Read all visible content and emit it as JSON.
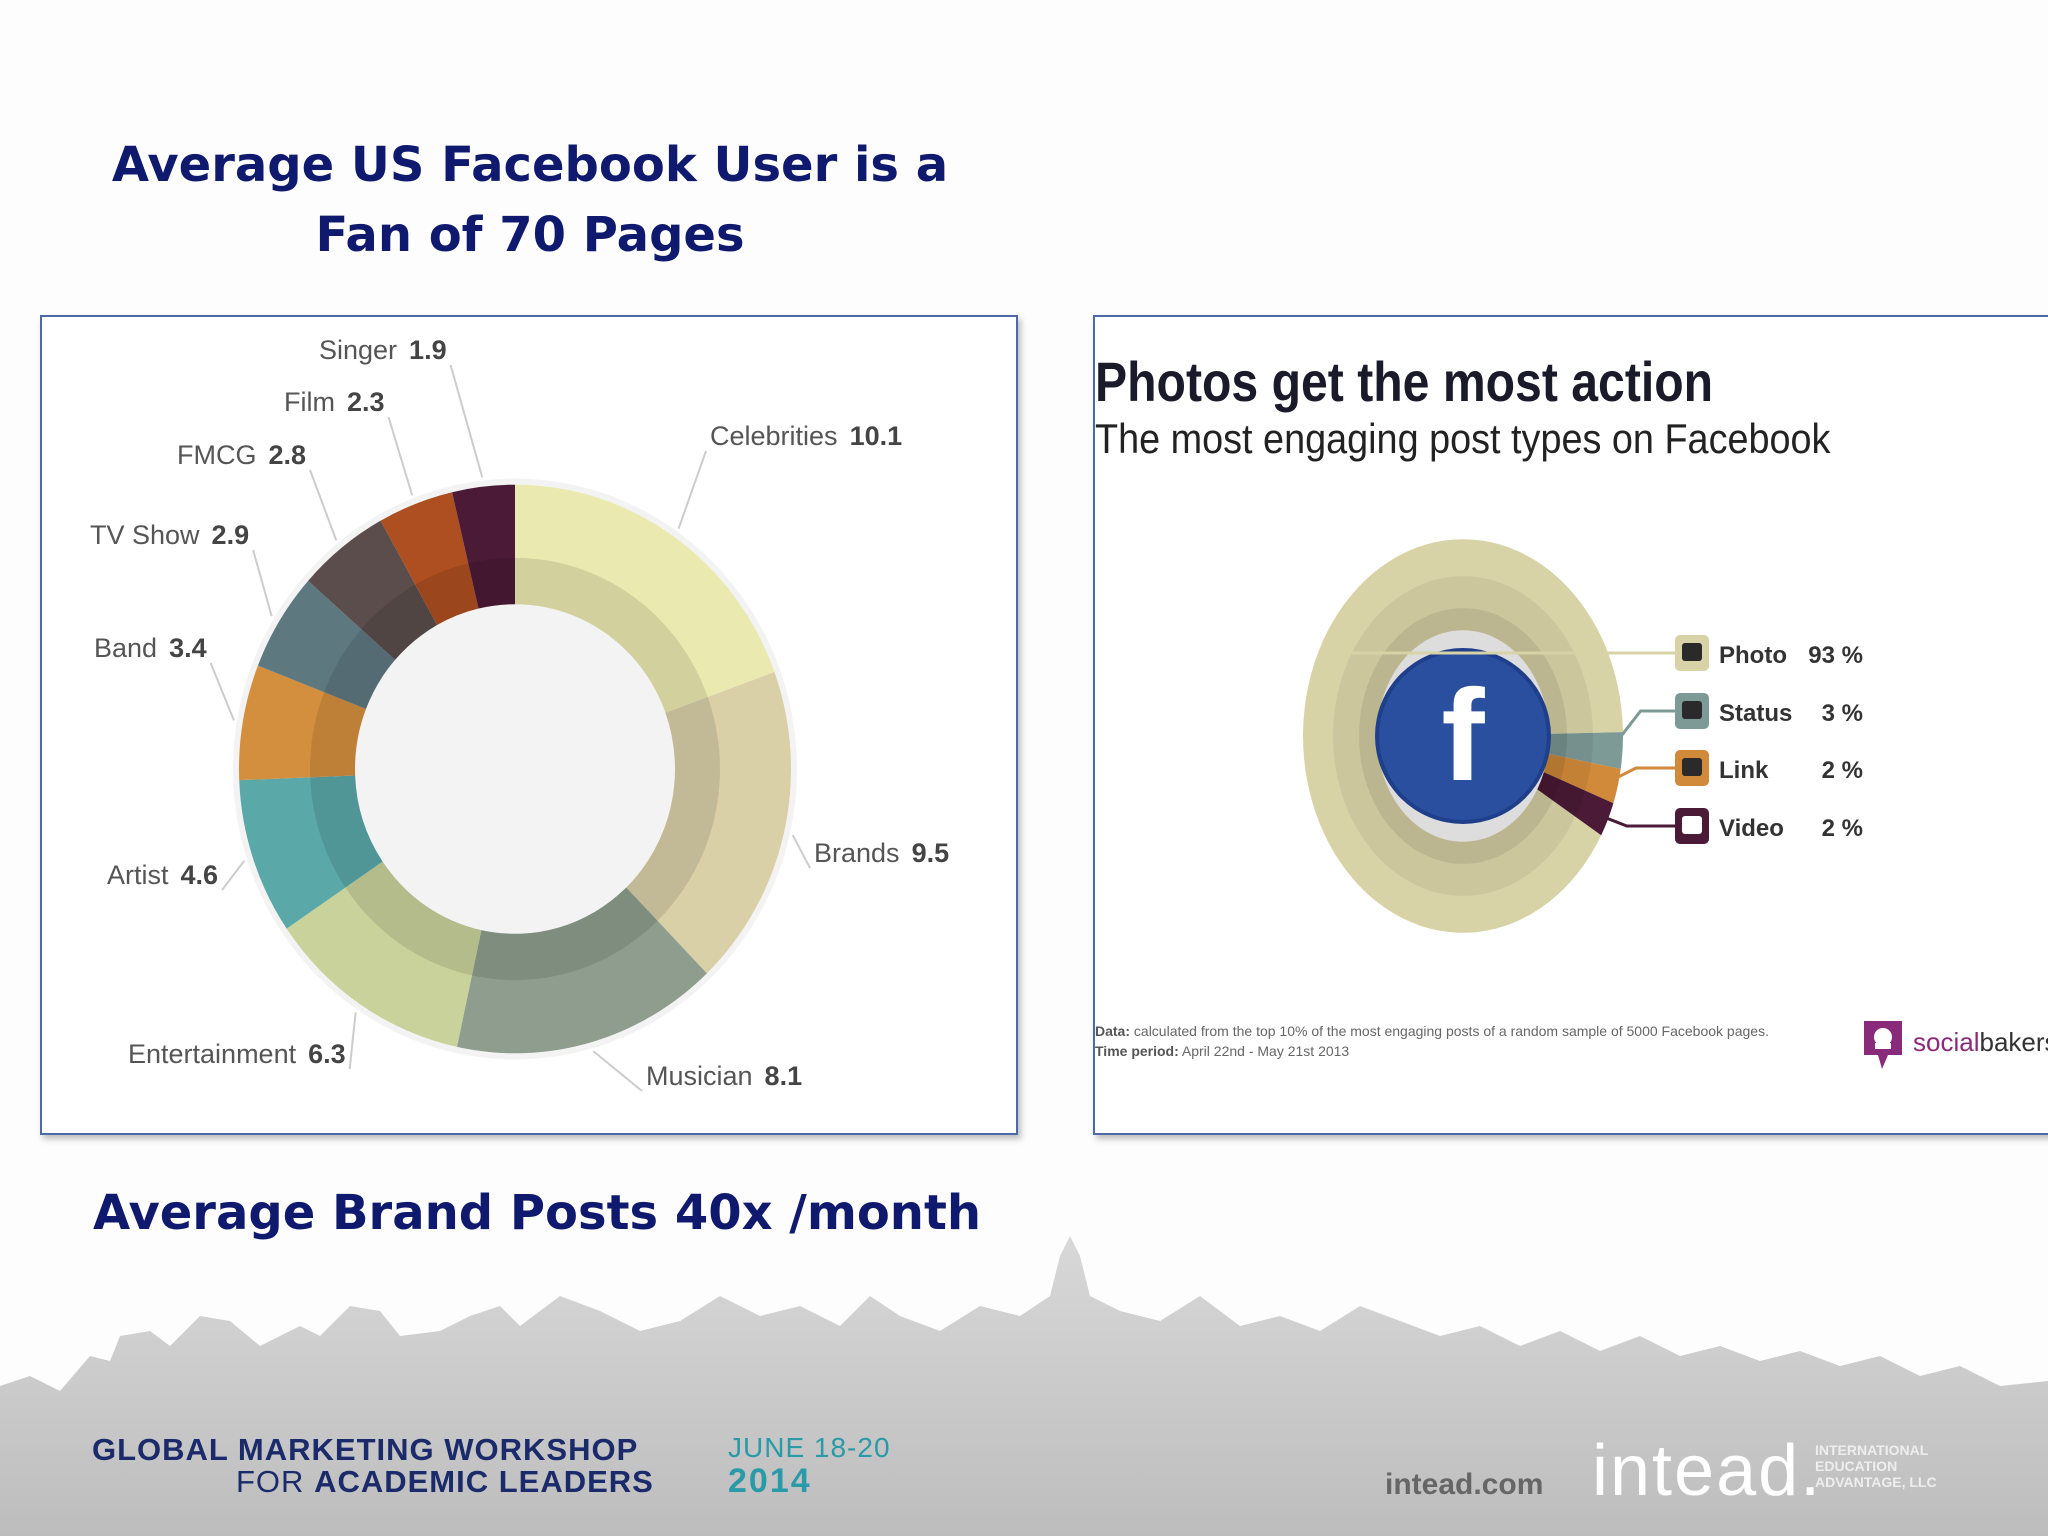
{
  "main_title": "Average US Facebook User is a  Fan of 70 Pages",
  "sub_heading": "Average Brand Posts 40x /month",
  "chart_data": [
    {
      "type": "pie",
      "title": "",
      "categories": [
        "Celebrities",
        "Brands",
        "Musician",
        "Entertainment",
        "Artist",
        "Band",
        "TV Show",
        "FMCG",
        "Film",
        "Singer"
      ],
      "values": [
        10.1,
        9.5,
        8.1,
        6.3,
        4.6,
        3.4,
        2.9,
        2.8,
        2.3,
        1.9
      ],
      "value_labels": [
        "10.1",
        "9.5",
        "8.1",
        "6.3",
        "4.6",
        "3.4",
        "2.9",
        "2.8",
        "2.3",
        "1.9"
      ],
      "colors": [
        "#eae9b0",
        "#d9d0a8",
        "#8e9d8d",
        "#c8d29a",
        "#5aa8a8",
        "#d48f3e",
        "#5e7880",
        "#5b4d4b",
        "#ad4f20",
        "#4b1a36"
      ]
    },
    {
      "type": "pie",
      "title": "Photos get the most action",
      "subtitle": "The most engaging post types on Facebook",
      "categories": [
        "Photo",
        "Status",
        "Link",
        "Video"
      ],
      "values": [
        93,
        3,
        2,
        2
      ],
      "value_labels": [
        "93 %",
        "3 %",
        "2 %",
        "2 %"
      ],
      "colors": [
        "#d8d3a6",
        "#7d9a96",
        "#d08a3a",
        "#4a1a36"
      ],
      "note_data_label": "Data:",
      "note_data": "calculated from the top 10% of the most engaging posts of a random sample of 5000 Facebook pages.",
      "note_time_label": "Time period:",
      "note_time": "April 22nd - May 21st 2013"
    }
  ],
  "socialbakers": {
    "part1": "social",
    "part2": "bakers"
  },
  "footer": {
    "line1": "GLOBAL MARKETING WORKSHOP",
    "line2_pre": "FOR",
    "line2_bold": "ACADEMIC LEADERS",
    "date": "JUNE 18-20",
    "year": "2014",
    "url": "intead.com",
    "brand": "intead.",
    "brand_small1": "INTERNATIONAL",
    "brand_small2": "EDUCATION",
    "brand_small3": "ADVANTAGE, LLC"
  },
  "fb_glyph": "f"
}
